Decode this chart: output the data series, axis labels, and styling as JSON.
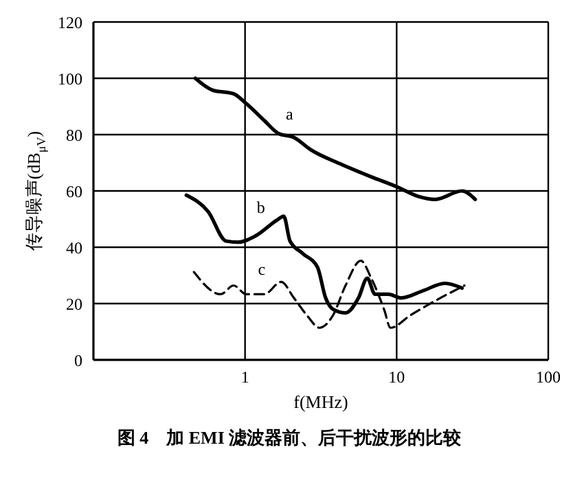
{
  "chart_data": {
    "type": "line",
    "title": "图 4　加 EMI 滤波器前、后干扰波形的比较",
    "xlabel": "f(MHz)",
    "ylabel": "传导噪声(dB$_{μV}$)",
    "log": "x",
    "grid": true,
    "legend": false,
    "marker": "none",
    "xlim": [
      0.1,
      100
    ],
    "xticks": [
      {
        "value": 0.1,
        "label": null
      },
      1,
      10,
      100
    ],
    "ylim": [
      0,
      120
    ],
    "yticks": [
      0,
      20,
      40,
      60,
      80,
      100,
      120
    ],
    "series": [
      {
        "name": "a",
        "color": "#000000",
        "line_style": "solid",
        "x": [
          0.47,
          0.61,
          0.84,
          1,
          1.34,
          1.66,
          2.1,
          2.7,
          4.3,
          6.8,
          10,
          14,
          18,
          27,
          33
        ],
        "values": [
          100,
          95.8,
          94.5,
          91.4,
          85,
          80.4,
          79,
          74.7,
          69.5,
          65,
          61.5,
          58,
          57,
          60,
          57
        ]
      },
      {
        "name": "b",
        "color": "#000000",
        "line_style": "solid",
        "x": [
          0.41,
          0.57,
          0.75,
          0.9,
          1.17,
          1.63,
          1.8,
          1.98,
          2.4,
          3,
          3.4,
          3.8,
          4.6,
          5.6,
          6.4,
          7.2,
          8.8,
          10.7,
          15,
          20.8,
          27
        ],
        "values": [
          58.5,
          52.7,
          42.2,
          41.8,
          44,
          49.7,
          51,
          42.2,
          37.8,
          33,
          22,
          18,
          16.7,
          22,
          29,
          23.3,
          23.3,
          22,
          24.6,
          27.2,
          25.5
        ]
      },
      {
        "name": "c",
        "color": "#000000",
        "line_style": "dashed",
        "x": [
          0.46,
          0.69,
          0.84,
          1.02,
          1.34,
          1.73,
          2.1,
          2.56,
          3.1,
          3.8,
          4.6,
          5.8,
          6.8,
          8.3,
          9.1,
          12.3,
          18,
          28
        ],
        "values": [
          31.2,
          23.3,
          26.4,
          23.3,
          23.3,
          27.7,
          22,
          15.8,
          11.4,
          15.8,
          26.4,
          35.2,
          29,
          17.6,
          11.4,
          15.8,
          21,
          26.4
        ]
      }
    ]
  }
}
